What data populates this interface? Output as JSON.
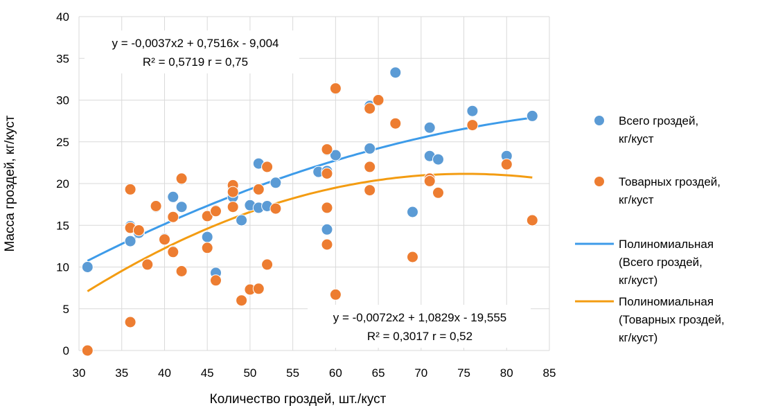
{
  "chart_data": {
    "type": "scatter",
    "xlabel": "Количество гроздей, шт./куст",
    "ylabel": "Масса гроздей, кг/куст",
    "xlim": [
      30,
      85
    ],
    "ylim": [
      0,
      40
    ],
    "xticks": [
      "30",
      "35",
      "40",
      "45",
      "50",
      "55",
      "60",
      "65",
      "70",
      "75",
      "80",
      "85"
    ],
    "yticks": [
      "0",
      "5",
      "10",
      "15",
      "20",
      "25",
      "30",
      "35",
      "40"
    ],
    "grid": true,
    "legend_position": "right",
    "series": [
      {
        "name": "Всего гроздей, кг/куст",
        "color": "#5b9bd5",
        "points": [
          [
            31,
            10.0
          ],
          [
            36,
            14.9
          ],
          [
            36,
            13.1
          ],
          [
            37,
            14.1
          ],
          [
            38,
            10.3
          ],
          [
            39,
            17.2
          ],
          [
            40,
            13.4
          ],
          [
            41,
            18.4
          ],
          [
            41,
            11.9
          ],
          [
            42,
            17.2
          ],
          [
            42,
            20.5
          ],
          [
            45,
            13.6
          ],
          [
            45,
            16.1
          ],
          [
            46,
            9.3
          ],
          [
            46,
            16.8
          ],
          [
            48,
            18.4
          ],
          [
            48,
            19.5
          ],
          [
            49,
            15.6
          ],
          [
            50,
            17.4
          ],
          [
            51,
            22.4
          ],
          [
            51,
            17.1
          ],
          [
            52,
            17.3
          ],
          [
            52,
            22.0
          ],
          [
            53,
            20.1
          ],
          [
            58,
            21.4
          ],
          [
            59,
            14.5
          ],
          [
            59,
            21.5
          ],
          [
            59,
            24.0
          ],
          [
            60,
            23.4
          ],
          [
            60,
            31.3
          ],
          [
            64,
            29.3
          ],
          [
            64,
            24.2
          ],
          [
            65,
            29.9
          ],
          [
            67,
            33.3
          ],
          [
            69,
            16.6
          ],
          [
            71,
            26.7
          ],
          [
            71,
            23.3
          ],
          [
            72,
            22.9
          ],
          [
            76,
            28.7
          ],
          [
            80,
            23.3
          ],
          [
            83,
            28.1
          ]
        ]
      },
      {
        "name": "Товарных гроздей, кг/куст",
        "color": "#ed7d31",
        "points": [
          [
            31,
            0.0
          ],
          [
            36,
            19.3
          ],
          [
            36,
            14.7
          ],
          [
            36,
            3.4
          ],
          [
            37,
            14.4
          ],
          [
            38,
            10.3
          ],
          [
            39,
            17.3
          ],
          [
            40,
            13.3
          ],
          [
            41,
            16.0
          ],
          [
            41,
            11.8
          ],
          [
            42,
            20.6
          ],
          [
            42,
            9.5
          ],
          [
            45,
            16.1
          ],
          [
            45,
            12.3
          ],
          [
            46,
            16.7
          ],
          [
            46,
            8.4
          ],
          [
            48,
            19.8
          ],
          [
            48,
            19.0
          ],
          [
            48,
            17.2
          ],
          [
            49,
            6.0
          ],
          [
            50,
            7.3
          ],
          [
            51,
            7.4
          ],
          [
            51,
            19.3
          ],
          [
            52,
            22.0
          ],
          [
            52,
            10.3
          ],
          [
            53,
            17.0
          ],
          [
            59,
            12.7
          ],
          [
            59,
            17.1
          ],
          [
            59,
            21.2
          ],
          [
            59,
            24.1
          ],
          [
            60,
            31.4
          ],
          [
            60,
            6.7
          ],
          [
            64,
            29.0
          ],
          [
            64,
            22.0
          ],
          [
            64,
            19.2
          ],
          [
            65,
            30.0
          ],
          [
            67,
            27.2
          ],
          [
            69,
            11.2
          ],
          [
            71,
            20.6
          ],
          [
            71,
            20.3
          ],
          [
            72,
            18.9
          ],
          [
            76,
            27.0
          ],
          [
            80,
            22.3
          ],
          [
            83,
            15.6
          ]
        ]
      }
    ],
    "trendlines": [
      {
        "name": "Полиномиальная (Всего гроздей, кг/куст)",
        "color": "#3d9be9",
        "coef": [
          -0.0037,
          0.7516,
          -9.004
        ],
        "x_range": [
          31,
          83
        ],
        "equation": "y = -0,0037x2 + 0,7516x - 9,004",
        "stats": "R² = 0,5719   r = 0,75"
      },
      {
        "name": "Полиномиальная (Товарных гроздей, кг/куст)",
        "color": "#f39c12",
        "coef": [
          -0.0072,
          1.0829,
          -19.555
        ],
        "x_range": [
          31,
          83
        ],
        "equation": "y = -0,0072x2 + 1,0829x - 19,555",
        "stats": "R² = 0,3017   r = 0,52"
      }
    ],
    "legend": [
      {
        "type": "marker",
        "color": "#5b9bd5",
        "lines": [
          "Всего гроздей,",
          "кг/куст"
        ]
      },
      {
        "type": "marker",
        "color": "#ed7d31",
        "lines": [
          "Товарных гроздей,",
          "кг/куст"
        ]
      },
      {
        "type": "line",
        "color": "#3d9be9",
        "lines": [
          "Полиномиальная",
          "(Всего гроздей,",
          "кг/куст)"
        ]
      },
      {
        "type": "line",
        "color": "#f39c12",
        "lines": [
          "Полиномиальная",
          "(Товарных гроздей,",
          "кг/куст)"
        ]
      }
    ]
  }
}
